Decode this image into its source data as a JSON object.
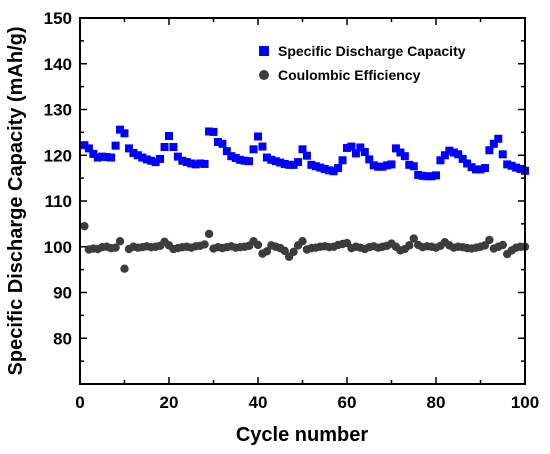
{
  "chart_data": {
    "type": "scatter",
    "title": "",
    "xlabel": "Cycle number",
    "ylabel": "Specific Discharge Capacity (mAh/g)",
    "xlim": [
      0,
      100
    ],
    "ylim": [
      70,
      150
    ],
    "xticks": [
      "0",
      "20",
      "40",
      "60",
      "80",
      "100"
    ],
    "yticks": [
      "80",
      "90",
      "100",
      "110",
      "120",
      "130",
      "140",
      "150"
    ],
    "grid": false,
    "legend_position": "top-right",
    "series": [
      {
        "name": "Specific Discharge Capacity",
        "marker": "square",
        "color": "#0000ff",
        "x": [
          1,
          2,
          3,
          4,
          5,
          6,
          7,
          8,
          9,
          10,
          11,
          12,
          13,
          14,
          15,
          16,
          17,
          18,
          19,
          20,
          21,
          22,
          23,
          24,
          25,
          26,
          27,
          28,
          29,
          30,
          31,
          32,
          33,
          34,
          35,
          36,
          37,
          38,
          39,
          40,
          41,
          42,
          43,
          44,
          45,
          46,
          47,
          48,
          49,
          50,
          51,
          52,
          53,
          54,
          55,
          56,
          57,
          58,
          59,
          60,
          61,
          62,
          63,
          64,
          65,
          66,
          67,
          68,
          69,
          70,
          71,
          72,
          73,
          74,
          75,
          76,
          77,
          78,
          79,
          80,
          81,
          82,
          83,
          84,
          85,
          86,
          87,
          88,
          89,
          90,
          91,
          92,
          93,
          94,
          95,
          96,
          97,
          98,
          99,
          100
        ],
        "y": [
          122.2,
          121.5,
          120.3,
          119.5,
          119.7,
          119.6,
          119.5,
          122.1,
          125.6,
          124.8,
          121.5,
          120.5,
          120.0,
          119.5,
          119.1,
          118.8,
          118.5,
          119.2,
          121.8,
          124.2,
          121.8,
          119.7,
          118.8,
          118.5,
          118.2,
          118.0,
          118.2,
          118.1,
          125.2,
          125.1,
          122.9,
          122.5,
          120.9,
          119.8,
          119.4,
          119.0,
          118.8,
          118.7,
          121.3,
          124.1,
          121.9,
          119.5,
          119.0,
          118.7,
          118.4,
          118.1,
          117.9,
          117.9,
          118.5,
          121.3,
          119.9,
          117.9,
          117.6,
          117.3,
          117.0,
          116.7,
          116.5,
          117.2,
          118.9,
          121.6,
          121.9,
          120.4,
          121.7,
          120.7,
          119.1,
          117.8,
          117.5,
          117.5,
          117.8,
          118.0,
          121.5,
          120.6,
          119.8,
          117.9,
          117.6,
          115.7,
          115.5,
          115.4,
          115.4,
          115.6,
          118.9,
          120.0,
          121.0,
          120.6,
          120.2,
          119.2,
          118.2,
          117.4,
          116.9,
          116.9,
          117.2,
          121.1,
          122.5,
          123.6,
          120.2,
          118.0,
          117.7,
          117.3,
          117.0,
          116.6
        ]
      },
      {
        "name": "Coulombic Efficiency",
        "marker": "circle",
        "color": "#3c3c3c",
        "x": [
          1,
          2,
          3,
          4,
          5,
          6,
          7,
          8,
          9,
          10,
          11,
          12,
          13,
          14,
          15,
          16,
          17,
          18,
          19,
          20,
          21,
          22,
          23,
          24,
          25,
          26,
          27,
          28,
          29,
          30,
          31,
          32,
          33,
          34,
          35,
          36,
          37,
          38,
          39,
          40,
          41,
          42,
          43,
          44,
          45,
          46,
          47,
          48,
          49,
          50,
          51,
          52,
          53,
          54,
          55,
          56,
          57,
          58,
          59,
          60,
          61,
          62,
          63,
          64,
          65,
          66,
          67,
          68,
          69,
          70,
          71,
          72,
          73,
          74,
          75,
          76,
          77,
          78,
          79,
          80,
          81,
          82,
          83,
          84,
          85,
          86,
          87,
          88,
          89,
          90,
          91,
          92,
          93,
          94,
          95,
          96,
          97,
          98,
          99,
          100
        ],
        "y": [
          104.5,
          99.4,
          99.6,
          99.5,
          99.9,
          100.0,
          99.7,
          99.8,
          101.2,
          95.2,
          99.5,
          100.0,
          99.8,
          99.9,
          100.1,
          99.9,
          100.0,
          100.2,
          101.1,
          100.3,
          99.5,
          99.7,
          99.9,
          100.0,
          99.8,
          100.1,
          100.2,
          100.5,
          102.8,
          99.6,
          99.9,
          99.7,
          99.9,
          100.1,
          99.8,
          99.9,
          100.0,
          100.2,
          101.2,
          100.4,
          98.5,
          99.0,
          100.3,
          100.0,
          99.7,
          99.1,
          97.8,
          98.9,
          100.3,
          101.2,
          99.4,
          99.7,
          99.8,
          100.0,
          100.1,
          99.9,
          100.0,
          100.4,
          100.6,
          100.8,
          99.7,
          100.0,
          99.8,
          99.5,
          99.9,
          100.1,
          99.8,
          100.0,
          100.2,
          100.7,
          100.0,
          99.2,
          99.5,
          100.3,
          101.8,
          100.4,
          99.9,
          100.1,
          100.0,
          99.8,
          100.2,
          101.0,
          100.3,
          99.8,
          100.0,
          99.9,
          99.7,
          99.6,
          99.8,
          100.0,
          100.3,
          101.5,
          99.6,
          100.0,
          100.4,
          98.4,
          99.2,
          99.8,
          100.0,
          100.0
        ]
      }
    ]
  }
}
